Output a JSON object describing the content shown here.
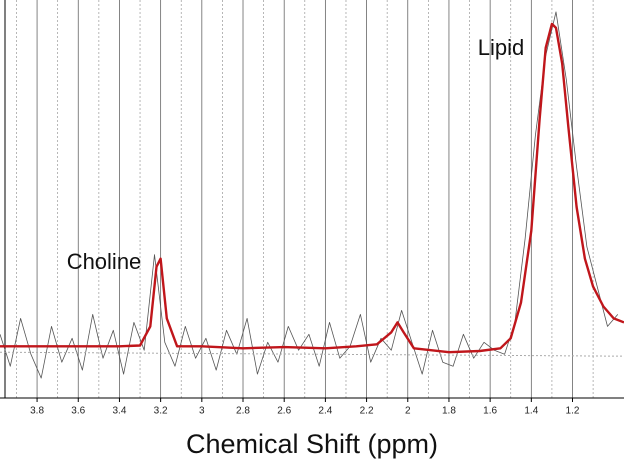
{
  "chart_data": {
    "type": "line",
    "xlabel": "Chemical Shift (ppm)",
    "annotations": [
      "Choline",
      "Lipid"
    ],
    "xlim": [
      3.98,
      0.95
    ],
    "ylim": [
      0,
      100
    ],
    "xticks": [
      3.8,
      3.6,
      3.4,
      3.2,
      3.0,
      2.8,
      2.6,
      2.4,
      2.2,
      2.0,
      1.8,
      1.6,
      1.4,
      1.2
    ],
    "xticks_minor": [
      3.9,
      3.7,
      3.5,
      3.3,
      3.1,
      2.9,
      2.7,
      2.5,
      2.3,
      2.1,
      1.9,
      1.7,
      1.5,
      1.3,
      1.1
    ],
    "grid": true,
    "series": [
      {
        "color": "#555555",
        "x": [
          3.98,
          3.93,
          3.88,
          3.83,
          3.78,
          3.73,
          3.68,
          3.63,
          3.58,
          3.53,
          3.48,
          3.43,
          3.38,
          3.33,
          3.28,
          3.23,
          3.18,
          3.13,
          3.08,
          3.03,
          2.98,
          2.93,
          2.88,
          2.83,
          2.78,
          2.73,
          2.68,
          2.63,
          2.58,
          2.53,
          2.48,
          2.43,
          2.38,
          2.33,
          2.28,
          2.23,
          2.18,
          2.13,
          2.08,
          2.03,
          1.98,
          1.93,
          1.88,
          1.83,
          1.78,
          1.73,
          1.68,
          1.63,
          1.58,
          1.53,
          1.48,
          1.43,
          1.38,
          1.33,
          1.28,
          1.23,
          1.18,
          1.13,
          1.08,
          1.03,
          0.98
        ],
        "values": [
          16,
          8,
          20,
          11,
          5,
          18,
          9,
          15,
          7,
          21,
          10,
          17,
          6,
          19,
          12,
          36,
          14,
          8,
          18,
          10,
          15,
          7,
          17,
          11,
          20,
          6,
          14,
          9,
          18,
          12,
          16,
          8,
          19,
          10,
          13,
          21,
          9,
          15,
          12,
          22,
          14,
          6,
          17,
          9,
          8,
          16,
          10,
          14,
          12,
          11,
          19,
          40,
          66,
          86,
          97,
          80,
          58,
          38,
          28,
          18,
          21
        ]
      },
      {
        "color": "#aaaaaa",
        "dashed": true,
        "x": [
          3.98,
          0.95
        ],
        "values": [
          11.5,
          10.5
        ]
      },
      {
        "color": "#c0161b",
        "x": [
          3.98,
          3.8,
          3.6,
          3.4,
          3.3,
          3.25,
          3.22,
          3.2,
          3.17,
          3.12,
          3.0,
          2.8,
          2.6,
          2.4,
          2.25,
          2.15,
          2.08,
          2.05,
          2.02,
          1.97,
          1.8,
          1.65,
          1.55,
          1.5,
          1.45,
          1.4,
          1.36,
          1.33,
          1.3,
          1.28,
          1.25,
          1.22,
          1.18,
          1.14,
          1.1,
          1.05,
          1.0,
          0.95
        ],
        "values": [
          13,
          13,
          13,
          13,
          13.2,
          18,
          33,
          35,
          20,
          13,
          13,
          12.5,
          12.8,
          12.5,
          13,
          13.5,
          16.5,
          19,
          16.5,
          12.5,
          11.5,
          11.8,
          12.5,
          15,
          24,
          42,
          70,
          88,
          94,
          93,
          84,
          68,
          48,
          35,
          28,
          23,
          20,
          19
        ]
      }
    ]
  }
}
